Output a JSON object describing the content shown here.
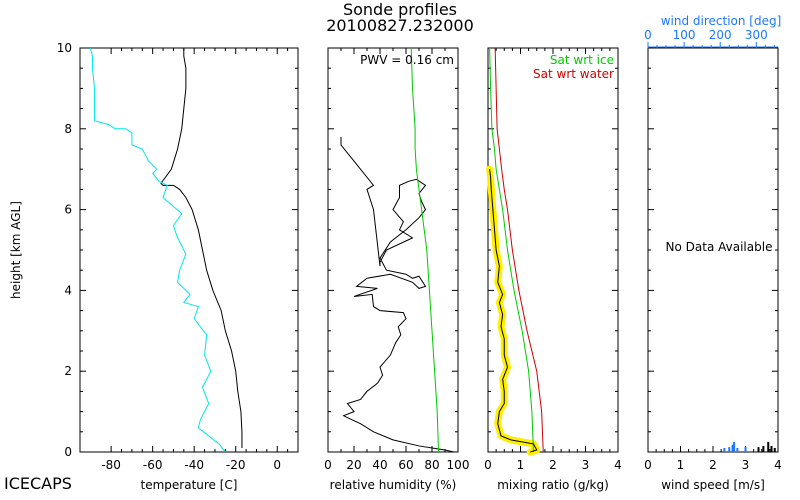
{
  "window": {
    "title": "Sonde profiles",
    "subtitle": "20100827.232000",
    "brand": "ICECAPS"
  },
  "colors": {
    "axis": "#000000",
    "temperature": "#000000",
    "dewpoint": "#00e5ee",
    "rh_ice": "#00c800",
    "sat_ice": "#00c800",
    "sat_water": "#d00000",
    "mixing_ratio": "#000000",
    "mixing_band": "#ffee00",
    "wind_dir": "#1e78ff",
    "wind_speed": "#000000"
  },
  "chart_data": [
    {
      "type": "line",
      "ylabel": "height [km AGL]",
      "xlabel": "temperature [C]",
      "xlim": [
        -95,
        10
      ],
      "ylim": [
        0,
        10
      ],
      "xticks": [
        -80,
        -60,
        -40,
        -20,
        0
      ],
      "yticks": [
        0,
        2,
        4,
        6,
        8,
        10
      ],
      "series": [
        {
          "key": "temperature",
          "color": "#000000",
          "x": [
            -17,
            -17,
            -17.5,
            -19,
            -20,
            -22,
            -25,
            -27,
            -31,
            -34,
            -36,
            -38,
            -41,
            -44,
            -47,
            -50,
            -53,
            -55,
            -56,
            -51,
            -48,
            -46,
            -45,
            -44,
            -44,
            -45,
            -45
          ],
          "y": [
            0.1,
            0.5,
            1,
            1.5,
            2,
            2.5,
            3,
            3.5,
            4,
            4.5,
            5,
            5.5,
            6,
            6.3,
            6.5,
            6.6,
            6.6,
            6.6,
            6.65,
            7,
            7.5,
            8,
            8.5,
            9,
            9.5,
            9.8,
            10
          ]
        },
        {
          "key": "dewpoint",
          "color": "#00e5ee",
          "x": [
            -25,
            -28,
            -38,
            -37,
            -33,
            -36,
            -32,
            -35,
            -34,
            -40,
            -38,
            -45,
            -42,
            -48,
            -47,
            -44,
            -48,
            -50,
            -46,
            -55,
            -53,
            -57,
            -60,
            -58,
            -62,
            -65,
            -70,
            -70,
            -73,
            -78,
            -81,
            -88,
            -88,
            -88,
            -89,
            -89,
            -90
          ],
          "y": [
            0,
            0.2,
            0.6,
            0.8,
            1.2,
            1.6,
            2,
            2.4,
            2.9,
            3.3,
            3.6,
            3.7,
            3.9,
            4.2,
            4.5,
            4.9,
            5.3,
            5.6,
            5.9,
            6.3,
            6.6,
            6.7,
            6.9,
            7,
            7.2,
            7.5,
            7.6,
            7.9,
            8,
            8,
            8.1,
            8.2,
            8.7,
            9.0,
            9.5,
            9.8,
            10
          ]
        }
      ]
    },
    {
      "type": "line",
      "xlabel": "relative humidity (%)",
      "xlim": [
        0,
        100
      ],
      "ylim": [
        0,
        10
      ],
      "xticks": [
        0,
        20,
        40,
        60,
        80,
        100
      ],
      "annotation": "PWV = 0.16 cm",
      "series": [
        {
          "key": "rh",
          "color": "#000000",
          "x": [
            97,
            90,
            70,
            50,
            35,
            25,
            15,
            12,
            20,
            15,
            25,
            30,
            38,
            42,
            40,
            48,
            52,
            56,
            54,
            60,
            58,
            40,
            35,
            34,
            20,
            38,
            22,
            30,
            48,
            65,
            70,
            75,
            72,
            70,
            65,
            60,
            45,
            40,
            48,
            60,
            70,
            75,
            72,
            70,
            75,
            68,
            62,
            55,
            55,
            50,
            58,
            55,
            65,
            45,
            40,
            40,
            35,
            30,
            35,
            25,
            20,
            15,
            10,
            10,
            10
          ],
          "y": [
            0,
            0.05,
            0.15,
            0.3,
            0.5,
            0.7,
            0.85,
            0.9,
            1.0,
            1.2,
            1.3,
            1.5,
            1.7,
            1.9,
            2.1,
            2.4,
            2.7,
            2.9,
            3.1,
            3.3,
            3.45,
            3.5,
            3.6,
            3.9,
            3.85,
            4.05,
            4.1,
            4.3,
            4.4,
            4.2,
            4.05,
            4.1,
            4.25,
            4.35,
            4.3,
            4.4,
            4.5,
            4.8,
            5.2,
            5.5,
            5.8,
            6.0,
            6.2,
            6.4,
            6.6,
            6.75,
            6.7,
            6.6,
            6.3,
            6.0,
            5.7,
            5.5,
            5.3,
            5.0,
            4.7,
            4.6,
            6.0,
            6.5,
            6.6,
            7.0,
            7.2,
            7.4,
            7.6,
            7.7,
            7.8
          ]
        },
        {
          "key": "rh_ice",
          "color": "#00c800",
          "x": [
            85,
            84,
            82,
            80,
            78,
            76,
            74,
            72,
            70,
            68,
            67,
            67,
            66,
            65,
            64
          ],
          "y": [
            0,
            1,
            2,
            3,
            4,
            5,
            5.5,
            6,
            6.5,
            7,
            7.5,
            8,
            8.5,
            9,
            10
          ]
        }
      ]
    },
    {
      "type": "line",
      "xlabel": "mixing ratio (g/kg)",
      "xlim": [
        0,
        4
      ],
      "ylim": [
        0,
        10
      ],
      "xticks": [
        0,
        1,
        2,
        3,
        4
      ],
      "legend": [
        "Sat wrt ice",
        "Sat wrt water"
      ],
      "series": [
        {
          "key": "sat_ice",
          "name": "Sat wrt ice",
          "color": "#00c800",
          "x": [
            1.4,
            1.35,
            1.25,
            1.05,
            0.8,
            0.6,
            0.45,
            0.35,
            0.25,
            0.2,
            0.12,
            0.08,
            0.05
          ],
          "y": [
            0,
            1,
            2,
            3,
            4,
            5,
            6,
            6.5,
            7,
            7.5,
            8,
            9,
            10
          ]
        },
        {
          "key": "sat_water",
          "name": "Sat wrt water",
          "color": "#d00000",
          "x": [
            1.7,
            1.65,
            1.5,
            1.2,
            0.95,
            0.75,
            0.6,
            0.5,
            0.42,
            0.35,
            0.28,
            0.22
          ],
          "y": [
            0,
            1,
            2,
            3,
            4,
            5,
            6,
            6.5,
            7,
            7.5,
            8,
            10
          ]
        },
        {
          "key": "mixing_ratio",
          "color": "#000000",
          "x": [
            1.3,
            1.5,
            1.4,
            0.7,
            0.4,
            0.3,
            0.35,
            0.5,
            0.5,
            0.45,
            0.6,
            0.5,
            0.5,
            0.4,
            0.45,
            0.35,
            0.45,
            0.3,
            0.35,
            0.25,
            0.2,
            0.15,
            0.1,
            0.08,
            0.05
          ],
          "y": [
            0,
            0.05,
            0.2,
            0.3,
            0.4,
            0.7,
            1.0,
            1.2,
            1.5,
            1.8,
            2.1,
            2.4,
            2.8,
            3.1,
            3.4,
            3.7,
            3.9,
            4.2,
            4.6,
            5.0,
            5.5,
            6.0,
            6.5,
            6.8,
            7.0
          ]
        }
      ]
    },
    {
      "type": "bar",
      "xlabel": "wind speed [m/s]",
      "x2label": "wind direction [deg]",
      "xlim": [
        0,
        4
      ],
      "x2lim": [
        0,
        360
      ],
      "ylim": [
        0,
        10
      ],
      "xticks": [
        0,
        1,
        2,
        3,
        4
      ],
      "x2ticks": [
        0,
        100,
        200,
        300
      ],
      "annotation": "No Data Available"
    }
  ]
}
